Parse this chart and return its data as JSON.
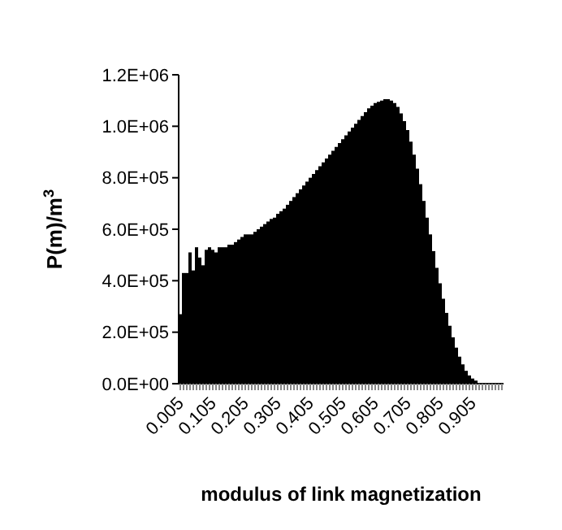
{
  "chart_data": {
    "type": "bar",
    "xlabel": "modulus of link magnetization",
    "ylabel": "P(m)/m$^{3}$",
    "categories": [
      "0.005",
      null,
      null,
      null,
      null,
      null,
      null,
      null,
      null,
      null,
      "0.105",
      null,
      null,
      null,
      null,
      null,
      null,
      null,
      null,
      null,
      "0.205",
      null,
      null,
      null,
      null,
      null,
      null,
      null,
      null,
      null,
      "0.305",
      null,
      null,
      null,
      null,
      null,
      null,
      null,
      null,
      null,
      "0.405",
      null,
      null,
      null,
      null,
      null,
      null,
      null,
      null,
      null,
      "0.505",
      null,
      null,
      null,
      null,
      null,
      null,
      null,
      null,
      null,
      "0.605",
      null,
      null,
      null,
      null,
      null,
      null,
      null,
      null,
      null,
      "0.705",
      null,
      null,
      null,
      null,
      null,
      null,
      null,
      null,
      null,
      "0.805",
      null,
      null,
      null,
      null,
      null,
      null,
      null,
      null,
      null,
      "0.905",
      null,
      null,
      null,
      null,
      null,
      null,
      null,
      null,
      null
    ],
    "values": [
      270000,
      430000,
      430000,
      510000,
      440000,
      530000,
      490000,
      460000,
      520000,
      530000,
      520000,
      510000,
      530000,
      530000,
      530000,
      540000,
      540000,
      550000,
      560000,
      570000,
      580000,
      580000,
      580000,
      590000,
      600000,
      610000,
      620000,
      630000,
      640000,
      645000,
      660000,
      670000,
      680000,
      695000,
      710000,
      725000,
      740000,
      755000,
      770000,
      785000,
      800000,
      815000,
      830000,
      845000,
      860000,
      875000,
      890000,
      905000,
      920000,
      935000,
      950000,
      965000,
      980000,
      995000,
      1010000,
      1025000,
      1040000,
      1055000,
      1070000,
      1080000,
      1090000,
      1095000,
      1100000,
      1105000,
      1105000,
      1100000,
      1090000,
      1075000,
      1050000,
      1020000,
      985000,
      940000,
      890000,
      835000,
      775000,
      710000,
      645000,
      580000,
      515000,
      450000,
      390000,
      330000,
      275000,
      225000,
      180000,
      140000,
      105000,
      75000,
      50000,
      32000,
      20000,
      12000,
      null,
      null,
      null,
      null,
      null,
      null,
      null,
      null
    ],
    "color": "#000000",
    "ylim": [
      0,
      1200000
    ],
    "yticks": [
      {
        "value": 0,
        "label": "0.0E+00"
      },
      {
        "value": 200000,
        "label": "2.0E+05"
      },
      {
        "value": 400000,
        "label": "4.0E+05"
      },
      {
        "value": 600000,
        "label": "6.0E+05"
      },
      {
        "value": 800000,
        "label": "8.0E+05"
      },
      {
        "value": 1000000,
        "label": "1.0E+06"
      },
      {
        "value": 1200000,
        "label": "1.2E+06"
      }
    ]
  }
}
